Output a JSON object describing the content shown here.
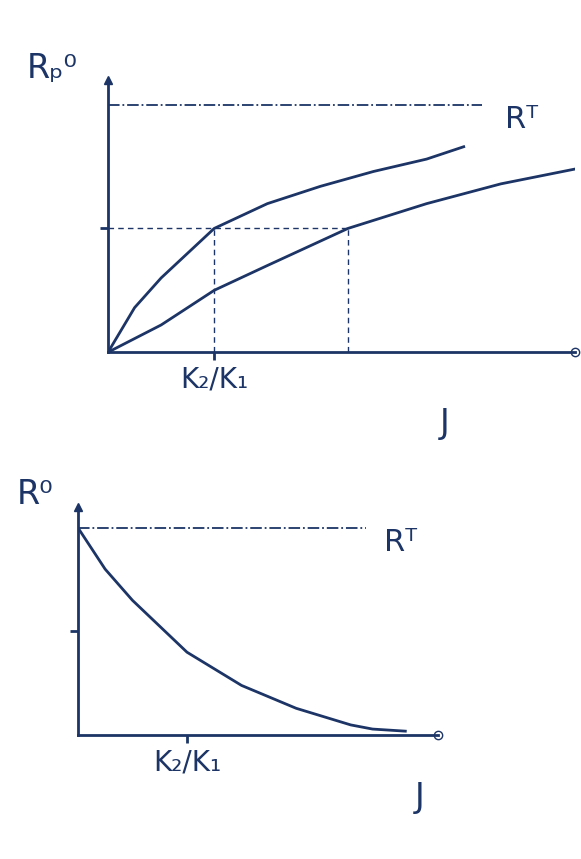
{
  "chart_data": [
    {
      "type": "line",
      "y_label": "Rₚ⁰",
      "x_label": "J",
      "xlim": [
        0,
        4.4
      ],
      "ylim": [
        0,
        1.1
      ],
      "xticks": [
        {
          "value": 1,
          "label": "K₂/K₁"
        }
      ],
      "yticks": [
        0.5
      ],
      "tick_labels": "x",
      "color": "#1c3566",
      "reference": {
        "text": "Rᵀ",
        "value": 1
      },
      "series": [
        {
          "x": [
            0,
            0.25,
            0.5,
            1,
            1.5,
            2,
            2.5,
            3,
            3.35
          ],
          "values": [
            0,
            0.18,
            0.3,
            0.5,
            0.6,
            0.67,
            0.73,
            0.78,
            0.83
          ]
        },
        {
          "x": [
            0,
            0.5,
            1,
            1.5,
            2.26,
            3,
            3.7,
            4.4
          ],
          "values": [
            0,
            0.11,
            0.25,
            0.35,
            0.5,
            0.6,
            0.68,
            0.74
          ]
        }
      ]
    },
    {
      "type": "line",
      "y_label": "R⁰",
      "x_label": "J",
      "xlim": [
        0,
        3.3
      ],
      "ylim": [
        0,
        1.1
      ],
      "xticks": [
        {
          "value": 1,
          "label": "K₂/K₁"
        }
      ],
      "yticks": [
        0.5
      ],
      "tick_labels": "x",
      "color": "#1c3566",
      "reference": {
        "text": "Rᵀ",
        "value": 1
      },
      "series": [
        {
          "x": [
            0,
            0.25,
            0.5,
            1,
            1.5,
            2,
            2.5,
            2.7,
            3.0
          ],
          "values": [
            1,
            0.8,
            0.65,
            0.4,
            0.24,
            0.13,
            0.05,
            0.03,
            0.02
          ]
        }
      ]
    }
  ]
}
